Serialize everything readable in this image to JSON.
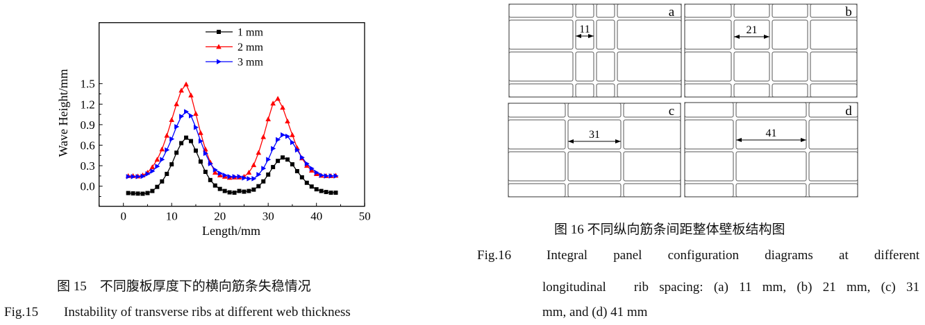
{
  "figure15": {
    "caption_zh": "图 15　不同腹板厚度下的横向筋条失稳情况",
    "caption_en_label": "Fig.15",
    "caption_en": "Instability of transverse ribs at different web thickness"
  },
  "figure16": {
    "caption_zh": "图 16 不同纵向筋条间距整体壁板结构图",
    "caption_en_label": "Fig.16",
    "caption_en_line1": "Integral panel configuration diagrams at different",
    "caption_en_line2": "longitudinal　rib spacing: (a) 11 mm, (b) 21 mm, (c) 31",
    "caption_en_line3": "mm, and (d) 41 mm",
    "panels": [
      {
        "letter": "a",
        "spacing_label": "11"
      },
      {
        "letter": "b",
        "spacing_label": "21"
      },
      {
        "letter": "c",
        "spacing_label": "31"
      },
      {
        "letter": "d",
        "spacing_label": "41"
      }
    ],
    "line_color": "#555555"
  },
  "chart_data": {
    "type": "line",
    "title": "",
    "xlabel": "Length/mm",
    "ylabel": "Wave Height/mm",
    "xlim": [
      -5,
      50
    ],
    "ylim": [
      -0.2,
      1.6
    ],
    "xticks": [
      "0",
      "10",
      "20",
      "30",
      "40",
      "50"
    ],
    "yticks": [
      "0.0",
      "0.3",
      "0.6",
      "0.9",
      "1.2",
      "1.5"
    ],
    "grid": false,
    "legend_position": "top-center",
    "x": [
      1,
      2,
      3,
      4,
      5,
      6,
      7,
      8,
      9,
      10,
      11,
      12,
      13,
      14,
      15,
      16,
      17,
      18,
      19,
      20,
      21,
      22,
      23,
      24,
      25,
      26,
      27,
      28,
      29,
      30,
      31,
      32,
      33,
      34,
      35,
      36,
      37,
      38,
      39,
      40,
      41,
      42,
      43,
      44
    ],
    "series": [
      {
        "name": "1 mm",
        "color": "#000000",
        "marker": "square",
        "values": [
          -0.1,
          -0.105,
          -0.108,
          -0.11,
          -0.1,
          -0.07,
          -0.01,
          0.07,
          0.18,
          0.32,
          0.49,
          0.63,
          0.71,
          0.66,
          0.52,
          0.36,
          0.21,
          0.09,
          0.01,
          -0.04,
          -0.07,
          -0.09,
          -0.095,
          -0.07,
          -0.08,
          -0.07,
          -0.05,
          0.0,
          0.07,
          0.17,
          0.28,
          0.37,
          0.42,
          0.39,
          0.32,
          0.22,
          0.13,
          0.05,
          -0.005,
          -0.045,
          -0.07,
          -0.085,
          -0.095,
          -0.095
        ]
      },
      {
        "name": "2 mm",
        "color": "#ff0000",
        "marker": "triangle-up",
        "values": [
          0.15,
          0.15,
          0.145,
          0.16,
          0.2,
          0.28,
          0.39,
          0.54,
          0.74,
          0.97,
          1.2,
          1.4,
          1.49,
          1.33,
          1.06,
          0.78,
          0.54,
          0.35,
          0.2,
          0.16,
          0.14,
          0.125,
          0.13,
          0.13,
          0.14,
          0.2,
          0.31,
          0.49,
          0.72,
          0.98,
          1.21,
          1.28,
          1.15,
          0.95,
          0.75,
          0.56,
          0.41,
          0.3,
          0.23,
          0.18,
          0.155,
          0.15,
          0.15,
          0.155
        ]
      },
      {
        "name": "3 mm",
        "color": "#0000ff",
        "marker": "triangle-right",
        "values": [
          0.14,
          0.14,
          0.14,
          0.145,
          0.18,
          0.22,
          0.29,
          0.39,
          0.53,
          0.69,
          0.87,
          1.02,
          1.09,
          1.03,
          0.86,
          0.66,
          0.48,
          0.33,
          0.24,
          0.19,
          0.16,
          0.14,
          0.14,
          0.14,
          0.12,
          0.11,
          0.11,
          0.17,
          0.26,
          0.39,
          0.55,
          0.68,
          0.75,
          0.73,
          0.64,
          0.53,
          0.42,
          0.33,
          0.26,
          0.2,
          0.16,
          0.15,
          0.15,
          0.15
        ]
      }
    ]
  }
}
